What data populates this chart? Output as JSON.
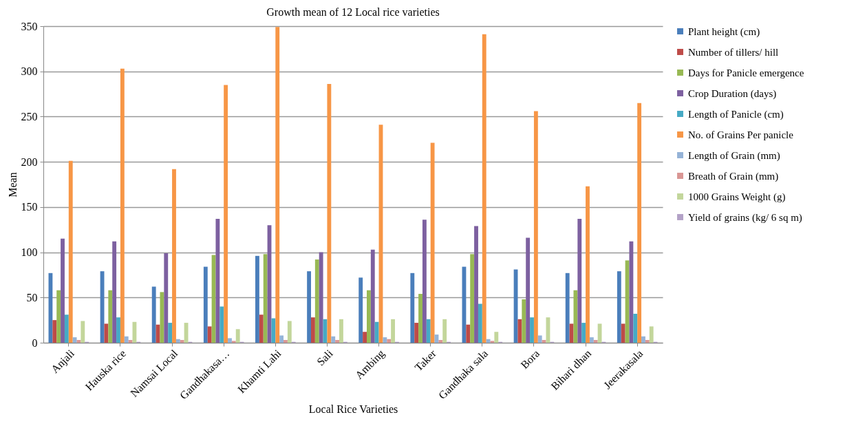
{
  "chart_data": {
    "type": "bar",
    "title": "Growth mean of 12 Local rice varieties",
    "xlabel": "Local Rice Varieties",
    "ylabel": "Mean",
    "categories": [
      "Anjali",
      "Hauska rice",
      "Namsai Local",
      "Gandhakasa…",
      "Khamti Lahi",
      "Sali",
      "Ambing",
      "Taker",
      "Gandhaka sala",
      "Bora",
      "Bihari dhan",
      "Jeerakasala"
    ],
    "series": [
      {
        "name": "Plant height (cm)",
        "color": "#4a7ebb",
        "values": [
          77,
          79,
          62,
          84,
          96,
          79,
          72,
          77,
          84,
          81,
          77,
          79
        ]
      },
      {
        "name": "Number of tillers/ hill",
        "color": "#be4b48",
        "values": [
          25,
          21,
          20,
          18,
          31,
          28,
          12,
          22,
          20,
          26,
          21,
          21
        ]
      },
      {
        "name": "Days for Panicle emergence",
        "color": "#98b954",
        "values": [
          58,
          58,
          56,
          97,
          98,
          92,
          58,
          54,
          98,
          48,
          58,
          91
        ]
      },
      {
        "name": "Crop Duration (days)",
        "color": "#7d60a0",
        "values": [
          115,
          112,
          99,
          137,
          130,
          100,
          103,
          136,
          129,
          116,
          137,
          112
        ]
      },
      {
        "name": "Length of Panicle (cm)",
        "color": "#46aac5",
        "values": [
          31,
          28,
          22,
          40,
          27,
          26,
          23,
          26,
          43,
          28,
          22,
          32
        ]
      },
      {
        "name": "No. of Grains Per panicle",
        "color": "#f79646",
        "values": [
          201,
          303,
          192,
          285,
          349,
          286,
          241,
          221,
          341,
          256,
          173,
          265
        ]
      },
      {
        "name": "Length of Grain (mm)",
        "color": "#95b3d7",
        "values": [
          6,
          7,
          4,
          5,
          8,
          7,
          6,
          9,
          4,
          8,
          6,
          7
        ]
      },
      {
        "name": "Breath of Grain (mm)",
        "color": "#d99694",
        "values": [
          3,
          3,
          3,
          2,
          3,
          3,
          4,
          3,
          2,
          3,
          3,
          3
        ]
      },
      {
        "name": "1000 Grains Weight (g)",
        "color": "#c3d69b",
        "values": [
          24,
          23,
          22,
          15,
          24,
          26,
          26,
          26,
          12,
          28,
          21,
          18
        ]
      },
      {
        "name": "Yield of grains (kg/ 6 sq m)",
        "color": "#b3a2c7",
        "values": [
          1,
          1,
          1,
          1,
          1,
          1,
          1,
          1,
          1,
          1,
          1,
          1
        ]
      }
    ],
    "ylim": [
      0,
      350
    ],
    "yticks": [
      0,
      50,
      100,
      150,
      200,
      250,
      300,
      350
    ],
    "grid": "y",
    "legend": "right"
  }
}
